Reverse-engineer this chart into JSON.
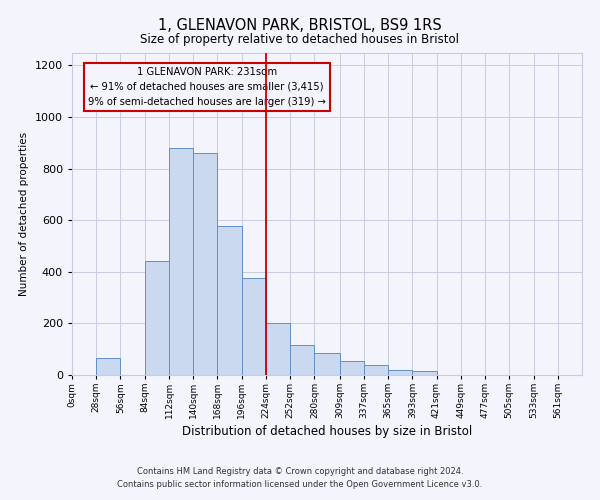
{
  "title": "1, GLENAVON PARK, BRISTOL, BS9 1RS",
  "subtitle": "Size of property relative to detached houses in Bristol",
  "xlabel": "Distribution of detached houses by size in Bristol",
  "ylabel": "Number of detached properties",
  "bin_labels": [
    "0sqm",
    "28sqm",
    "56sqm",
    "84sqm",
    "112sqm",
    "140sqm",
    "168sqm",
    "196sqm",
    "224sqm",
    "252sqm",
    "280sqm",
    "309sqm",
    "337sqm",
    "365sqm",
    "393sqm",
    "421sqm",
    "449sqm",
    "477sqm",
    "505sqm",
    "533sqm",
    "561sqm"
  ],
  "bin_edges": [
    0,
    28,
    56,
    84,
    112,
    140,
    168,
    196,
    224,
    252,
    280,
    309,
    337,
    365,
    393,
    421,
    449,
    477,
    505,
    533,
    561,
    589
  ],
  "bar_heights": [
    0,
    65,
    0,
    443,
    880,
    862,
    578,
    375,
    203,
    115,
    85,
    55,
    40,
    18,
    15,
    0,
    0,
    0,
    0,
    0,
    0
  ],
  "bar_color": "#cad9f0",
  "bar_edge_color": "#6090c8",
  "vline_x": 224,
  "vline_color": "#cc0000",
  "annotation_title": "1 GLENAVON PARK: 231sqm",
  "annotation_line1": "← 91% of detached houses are smaller (3,415)",
  "annotation_line2": "9% of semi-detached houses are larger (319) →",
  "annotation_box_edge": "#cc0000",
  "ylim": [
    0,
    1250
  ],
  "yticks": [
    0,
    200,
    400,
    600,
    800,
    1000,
    1200
  ],
  "footnote1": "Contains HM Land Registry data © Crown copyright and database right 2024.",
  "footnote2": "Contains public sector information licensed under the Open Government Licence v3.0.",
  "bg_color": "#f4f4fc",
  "grid_color": "#c8cce0"
}
